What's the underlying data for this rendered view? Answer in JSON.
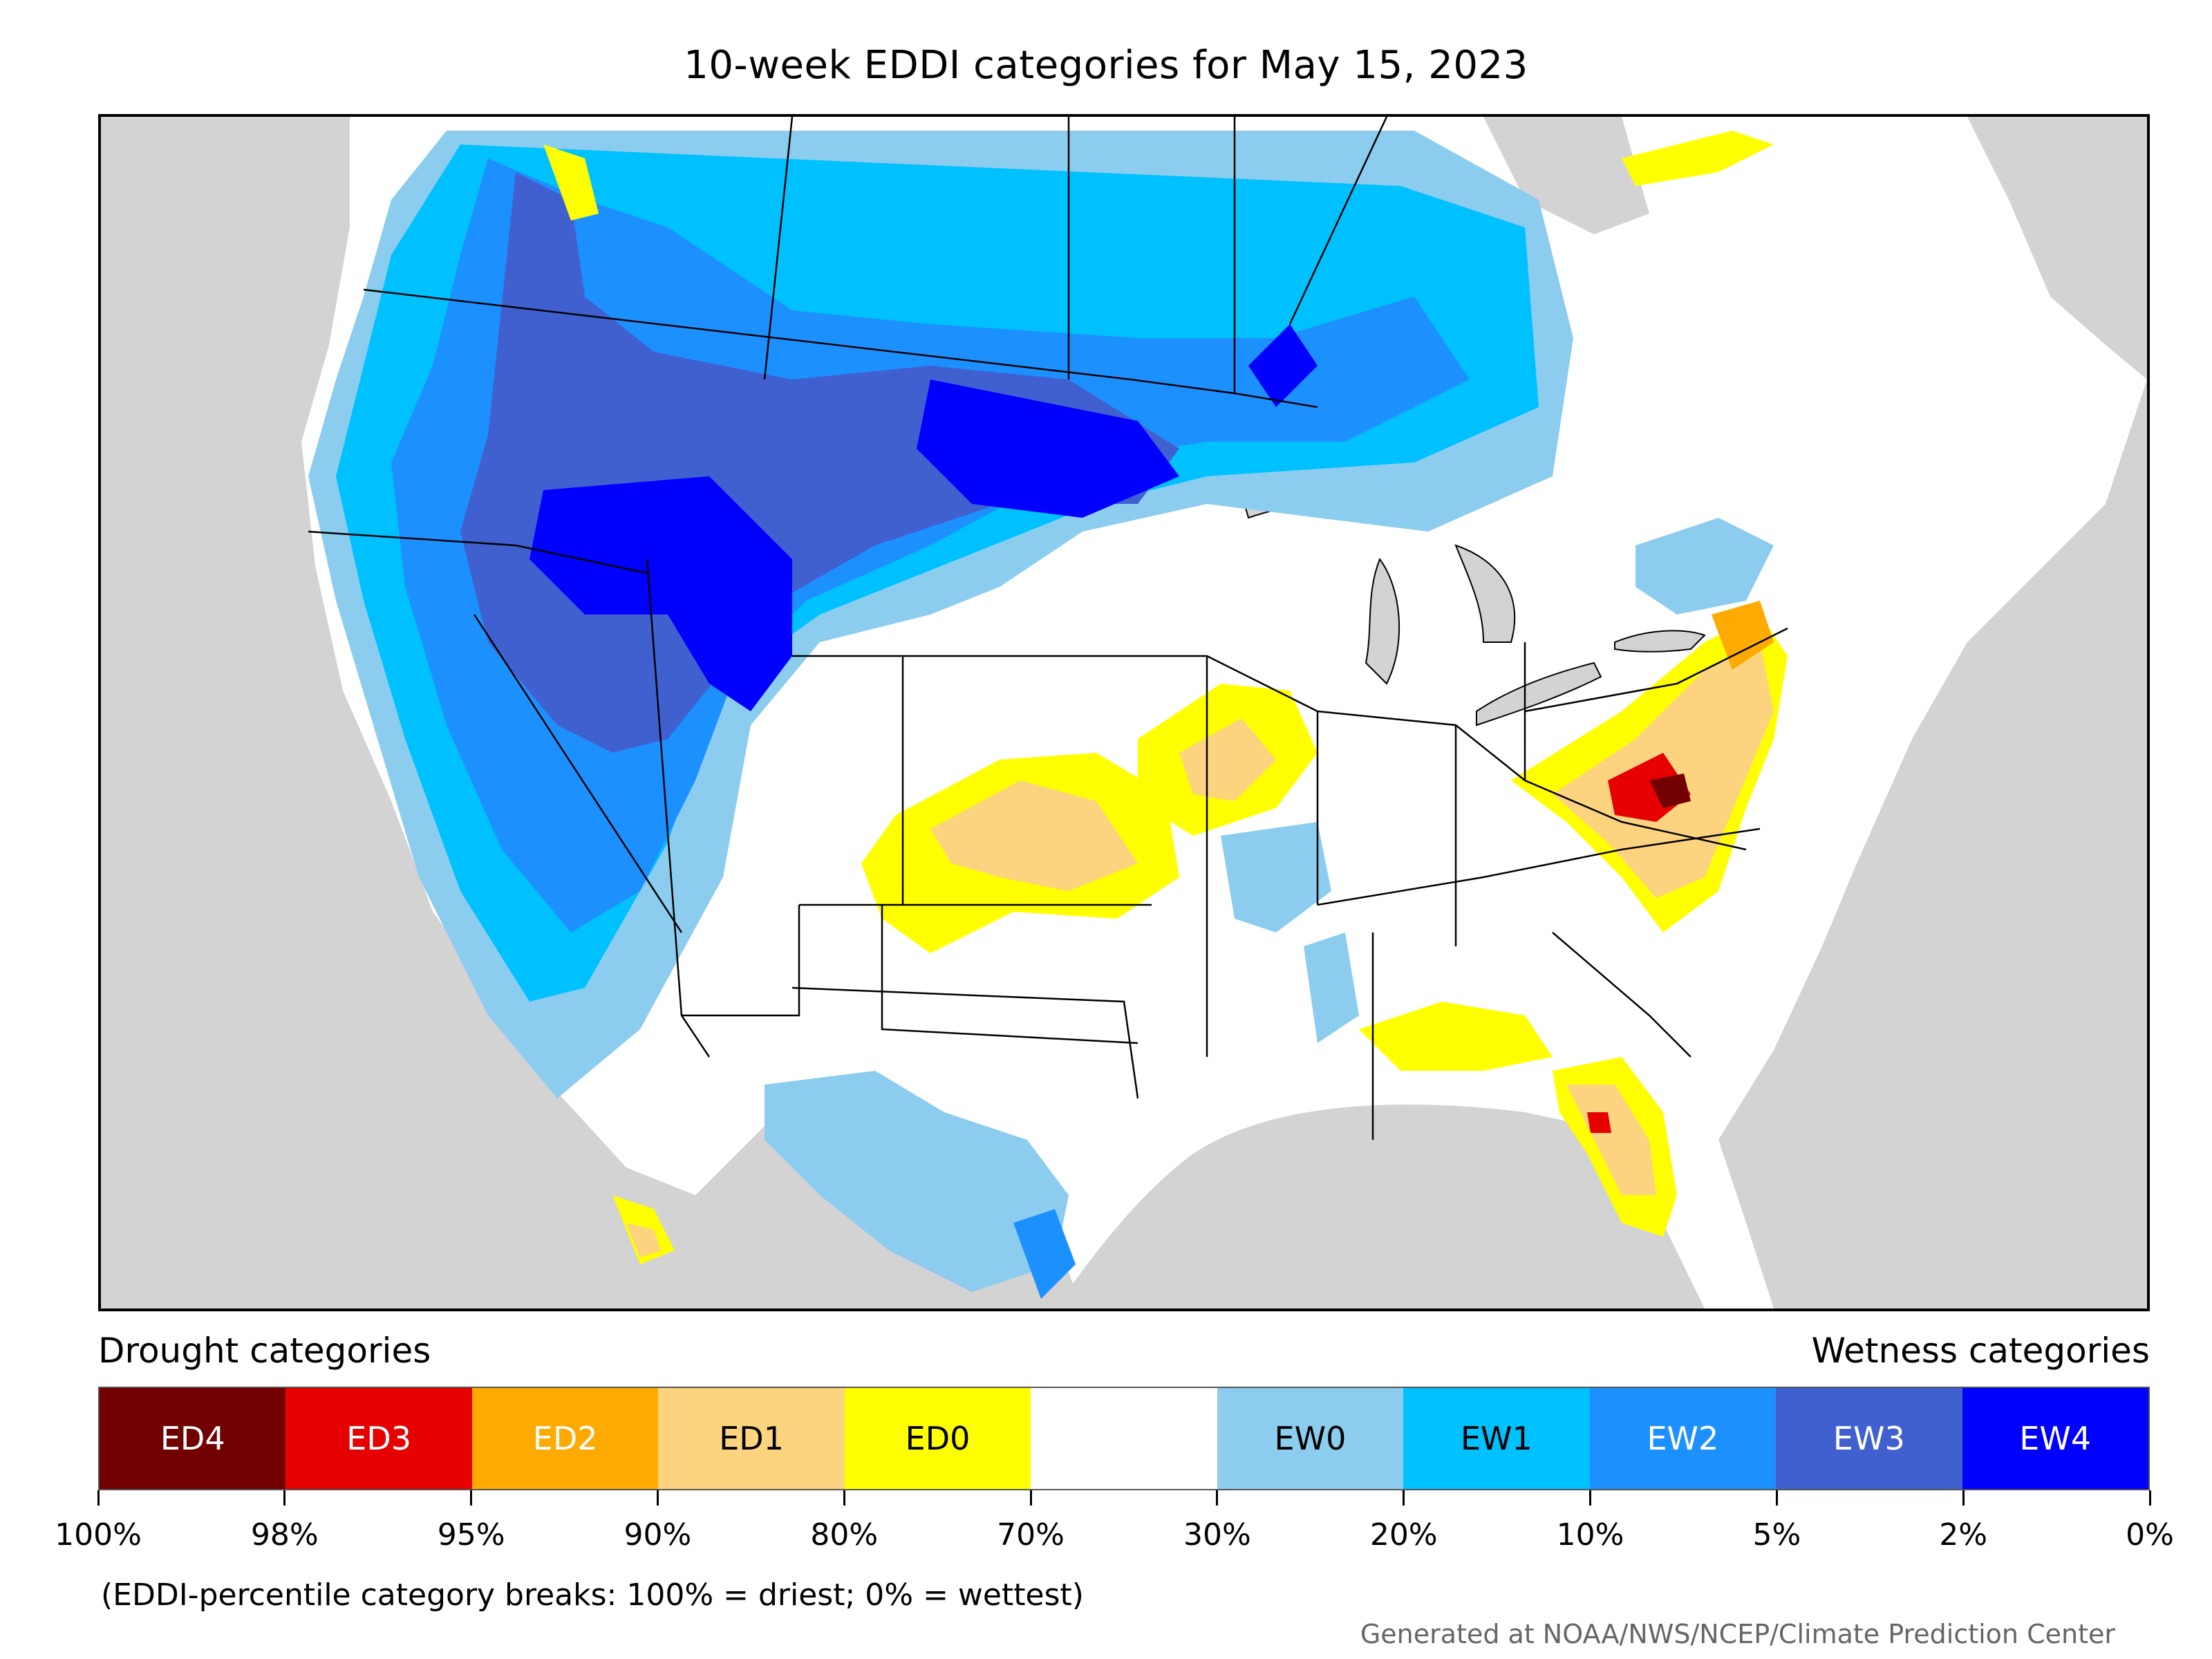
{
  "title": "10-week EDDI categories for May 15, 2023",
  "legend": {
    "left_heading": "Drought categories",
    "right_heading": "Wetness categories",
    "categories": [
      {
        "label": "ED4",
        "color": "#730000",
        "text_color": "#ffffff"
      },
      {
        "label": "ED3",
        "color": "#e60000",
        "text_color": "#ffffff"
      },
      {
        "label": "ED2",
        "color": "#ffaa00",
        "text_color": "#ffffff"
      },
      {
        "label": "ED1",
        "color": "#fcd37f",
        "text_color": "#000000"
      },
      {
        "label": "ED0",
        "color": "#ffff00",
        "text_color": "#000000"
      },
      {
        "label": "",
        "color": "#ffffff",
        "text_color": "#000000"
      },
      {
        "label": "EW0",
        "color": "#8ccdef",
        "text_color": "#000000"
      },
      {
        "label": "EW1",
        "color": "#00c1ff",
        "text_color": "#000000"
      },
      {
        "label": "EW2",
        "color": "#1d90ff",
        "text_color": "#ffffff"
      },
      {
        "label": "EW3",
        "color": "#4060d0",
        "text_color": "#ffffff"
      },
      {
        "label": "EW4",
        "color": "#0000ff",
        "text_color": "#ffffff"
      }
    ],
    "breaks": [
      "100%",
      "98%",
      "95%",
      "90%",
      "80%",
      "70%",
      "30%",
      "20%",
      "10%",
      "5%",
      "2%",
      "0%"
    ]
  },
  "footnote": "(EDDI-percentile category breaks: 100% = driest; 0% = wettest)",
  "credit": "Generated at NOAA/NWS/NCEP/Climate Prediction Center"
}
